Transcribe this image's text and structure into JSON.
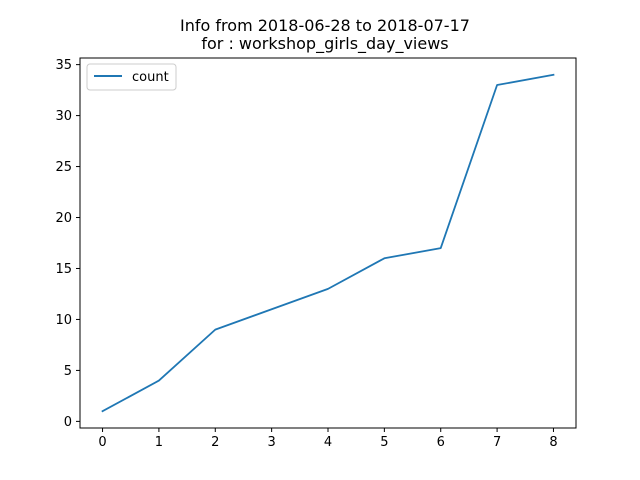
{
  "chart_data": {
    "type": "line",
    "title_line1": "Info from 2018-06-28 to 2018-07-17",
    "title_line2": "for  : workshop_girls_day_views",
    "x": [
      0,
      1,
      2,
      3,
      4,
      5,
      6,
      7,
      8
    ],
    "series": [
      {
        "name": "count",
        "color": "#1f77b4",
        "values": [
          1,
          4,
          9,
          11,
          13,
          16,
          17,
          33,
          34
        ]
      }
    ],
    "xticks": [
      "0",
      "1",
      "2",
      "3",
      "4",
      "5",
      "6",
      "7",
      "8"
    ],
    "yticks": [
      "0",
      "5",
      "10",
      "15",
      "20",
      "25",
      "30",
      "35"
    ],
    "xlim": [
      -0.4,
      8.4
    ],
    "ylim": [
      -0.65,
      35.65
    ],
    "legend_position": "top-left",
    "grid": false
  }
}
